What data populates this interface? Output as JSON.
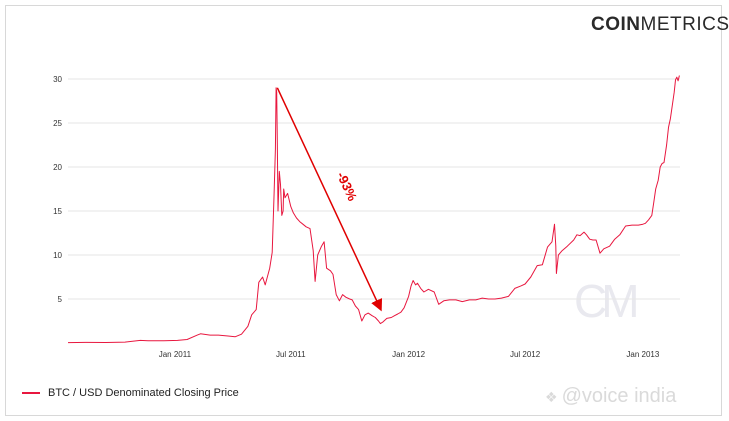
{
  "logo": {
    "bold": "COIN",
    "light": "METRICS"
  },
  "legend": {
    "label": "BTC / USD Denominated Closing Price",
    "color": "#e8173f"
  },
  "watermarks": {
    "cm": "CM",
    "voice": "@voice india"
  },
  "annotation": {
    "text": "-93%",
    "color": "#e00000",
    "from": {
      "x": "2011-06-10",
      "y": 29.0
    },
    "to": {
      "x": "2011-11-18",
      "y": 3.9
    }
  },
  "chart_data": {
    "type": "line",
    "title": "",
    "xlabel": "",
    "ylabel": "",
    "ylim": [
      0,
      30
    ],
    "xlim": [
      "2010-07-18",
      "2013-02-28"
    ],
    "yticks": [
      5,
      10,
      15,
      20,
      25,
      30
    ],
    "xticks": [
      {
        "date": "2011-01-01",
        "label": "Jan 2011"
      },
      {
        "date": "2011-07-01",
        "label": "Jul 2011"
      },
      {
        "date": "2012-01-01",
        "label": "Jan 2012"
      },
      {
        "date": "2012-07-01",
        "label": "Jul 2012"
      },
      {
        "date": "2013-01-01",
        "label": "Jan 2013"
      }
    ],
    "grid": true,
    "series": [
      {
        "name": "BTC / USD Denominated Closing Price",
        "color": "#e8173f",
        "points": [
          [
            "2010-07-18",
            0.05
          ],
          [
            "2010-08-15",
            0.07
          ],
          [
            "2010-09-15",
            0.06
          ],
          [
            "2010-10-15",
            0.1
          ],
          [
            "2010-11-08",
            0.3
          ],
          [
            "2010-11-20",
            0.25
          ],
          [
            "2010-12-15",
            0.25
          ],
          [
            "2011-01-05",
            0.3
          ],
          [
            "2011-01-20",
            0.4
          ],
          [
            "2011-02-05",
            0.9
          ],
          [
            "2011-02-10",
            1.05
          ],
          [
            "2011-02-25",
            0.9
          ],
          [
            "2011-03-10",
            0.9
          ],
          [
            "2011-03-25",
            0.8
          ],
          [
            "2011-04-05",
            0.7
          ],
          [
            "2011-04-15",
            1.0
          ],
          [
            "2011-04-25",
            1.9
          ],
          [
            "2011-05-01",
            3.2
          ],
          [
            "2011-05-08",
            3.8
          ],
          [
            "2011-05-12",
            6.9
          ],
          [
            "2011-05-18",
            7.5
          ],
          [
            "2011-05-22",
            6.6
          ],
          [
            "2011-05-29",
            8.5
          ],
          [
            "2011-06-02",
            10.3
          ],
          [
            "2011-06-05",
            17.0
          ],
          [
            "2011-06-07",
            22.0
          ],
          [
            "2011-06-08",
            29.0
          ],
          [
            "2011-06-09",
            28.5
          ],
          [
            "2011-06-10",
            23.0
          ],
          [
            "2011-06-11",
            15.0
          ],
          [
            "2011-06-13",
            19.5
          ],
          [
            "2011-06-15",
            18.0
          ],
          [
            "2011-06-17",
            14.5
          ],
          [
            "2011-06-19",
            15.0
          ],
          [
            "2011-06-20",
            17.5
          ],
          [
            "2011-06-22",
            16.5
          ],
          [
            "2011-06-26",
            17.0
          ],
          [
            "2011-07-01",
            15.5
          ],
          [
            "2011-07-05",
            14.8
          ],
          [
            "2011-07-10",
            14.2
          ],
          [
            "2011-07-15",
            13.8
          ],
          [
            "2011-07-20",
            13.5
          ],
          [
            "2011-07-25",
            13.2
          ],
          [
            "2011-07-31",
            13.0
          ],
          [
            "2011-08-05",
            10.5
          ],
          [
            "2011-08-08",
            7.0
          ],
          [
            "2011-08-12",
            10.0
          ],
          [
            "2011-08-18",
            11.0
          ],
          [
            "2011-08-22",
            11.5
          ],
          [
            "2011-08-26",
            8.5
          ],
          [
            "2011-09-01",
            8.2
          ],
          [
            "2011-09-05",
            7.8
          ],
          [
            "2011-09-10",
            5.5
          ],
          [
            "2011-09-15",
            4.8
          ],
          [
            "2011-09-20",
            5.5
          ],
          [
            "2011-09-25",
            5.2
          ],
          [
            "2011-10-01",
            5.0
          ],
          [
            "2011-10-05",
            4.9
          ],
          [
            "2011-10-10",
            4.2
          ],
          [
            "2011-10-15",
            3.8
          ],
          [
            "2011-10-20",
            2.5
          ],
          [
            "2011-10-25",
            3.2
          ],
          [
            "2011-10-30",
            3.4
          ],
          [
            "2011-11-05",
            3.1
          ],
          [
            "2011-11-10",
            2.9
          ],
          [
            "2011-11-15",
            2.5
          ],
          [
            "2011-11-18",
            2.2
          ],
          [
            "2011-11-22",
            2.4
          ],
          [
            "2011-11-28",
            2.8
          ],
          [
            "2011-12-05",
            2.9
          ],
          [
            "2011-12-10",
            3.1
          ],
          [
            "2011-12-15",
            3.3
          ],
          [
            "2011-12-20",
            3.5
          ],
          [
            "2011-12-25",
            4.0
          ],
          [
            "2012-01-01",
            5.3
          ],
          [
            "2012-01-05",
            6.5
          ],
          [
            "2012-01-08",
            7.1
          ],
          [
            "2012-01-12",
            6.6
          ],
          [
            "2012-01-15",
            6.8
          ],
          [
            "2012-01-20",
            6.2
          ],
          [
            "2012-01-25",
            5.8
          ],
          [
            "2012-02-01",
            6.1
          ],
          [
            "2012-02-10",
            5.8
          ],
          [
            "2012-02-17",
            4.4
          ],
          [
            "2012-02-25",
            4.8
          ],
          [
            "2012-03-05",
            4.9
          ],
          [
            "2012-03-15",
            4.9
          ],
          [
            "2012-03-25",
            4.7
          ],
          [
            "2012-04-05",
            4.9
          ],
          [
            "2012-04-15",
            4.9
          ],
          [
            "2012-04-25",
            5.1
          ],
          [
            "2012-05-05",
            5.0
          ],
          [
            "2012-05-15",
            5.0
          ],
          [
            "2012-05-25",
            5.1
          ],
          [
            "2012-06-05",
            5.3
          ],
          [
            "2012-06-15",
            6.2
          ],
          [
            "2012-06-25",
            6.5
          ],
          [
            "2012-07-01",
            6.7
          ],
          [
            "2012-07-10",
            7.5
          ],
          [
            "2012-07-20",
            8.8
          ],
          [
            "2012-07-28",
            8.9
          ],
          [
            "2012-08-05",
            10.9
          ],
          [
            "2012-08-12",
            11.5
          ],
          [
            "2012-08-16",
            13.5
          ],
          [
            "2012-08-18",
            11.0
          ],
          [
            "2012-08-19",
            7.9
          ],
          [
            "2012-08-22",
            10.0
          ],
          [
            "2012-08-28",
            10.5
          ],
          [
            "2012-09-05",
            11.0
          ],
          [
            "2012-09-15",
            11.7
          ],
          [
            "2012-09-20",
            12.3
          ],
          [
            "2012-09-25",
            12.2
          ],
          [
            "2012-10-01",
            12.6
          ],
          [
            "2012-10-05",
            12.3
          ],
          [
            "2012-10-10",
            11.8
          ],
          [
            "2012-10-15",
            11.7
          ],
          [
            "2012-10-20",
            11.7
          ],
          [
            "2012-10-26",
            10.2
          ],
          [
            "2012-11-01",
            10.7
          ],
          [
            "2012-11-10",
            11.0
          ],
          [
            "2012-11-18",
            11.8
          ],
          [
            "2012-11-26",
            12.3
          ],
          [
            "2012-12-05",
            13.3
          ],
          [
            "2012-12-15",
            13.4
          ],
          [
            "2012-12-25",
            13.4
          ],
          [
            "2013-01-01",
            13.5
          ],
          [
            "2013-01-05",
            13.6
          ],
          [
            "2013-01-10",
            14.0
          ],
          [
            "2013-01-15",
            14.5
          ],
          [
            "2013-01-18",
            16.0
          ],
          [
            "2013-01-21",
            17.5
          ],
          [
            "2013-01-25",
            18.5
          ],
          [
            "2013-01-28",
            20.0
          ],
          [
            "2013-01-31",
            20.4
          ],
          [
            "2013-02-03",
            20.5
          ],
          [
            "2013-02-07",
            22.5
          ],
          [
            "2013-02-10",
            24.5
          ],
          [
            "2013-02-13",
            25.5
          ],
          [
            "2013-02-16",
            27.0
          ],
          [
            "2013-02-19",
            28.5
          ],
          [
            "2013-02-21",
            29.9
          ],
          [
            "2013-02-23",
            30.2
          ],
          [
            "2013-02-25",
            29.8
          ],
          [
            "2013-02-27",
            30.4
          ]
        ]
      }
    ]
  }
}
